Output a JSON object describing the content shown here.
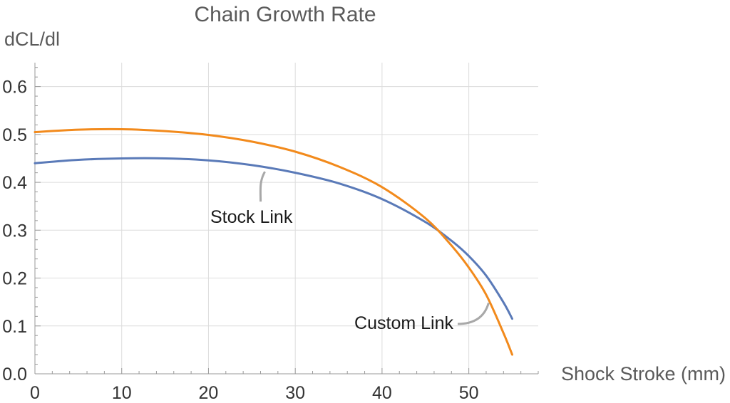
{
  "chart_data": {
    "type": "line",
    "title": "Chain Growth Rate",
    "xlabel": "Shock Stroke (mm)",
    "ylabel": "dCL/dl",
    "xlim": [
      0,
      58
    ],
    "ylim": [
      0,
      0.65
    ],
    "xticks": [
      0,
      10,
      20,
      30,
      40,
      50
    ],
    "xtick_labels": [
      "0",
      "10",
      "20",
      "30",
      "40",
      "50"
    ],
    "yticks": [
      0.0,
      0.1,
      0.2,
      0.3,
      0.4,
      0.5,
      0.6
    ],
    "ytick_labels": [
      "0.0",
      "0.1",
      "0.2",
      "0.3",
      "0.4",
      "0.5",
      "0.6"
    ],
    "grid": true,
    "series": [
      {
        "name": "Stock Link",
        "color": "#5a7ab8",
        "x": [
          0,
          5,
          10,
          15,
          20,
          25,
          30,
          35,
          40,
          45,
          48,
          50,
          52,
          54,
          55
        ],
        "y": [
          0.44,
          0.447,
          0.45,
          0.45,
          0.446,
          0.436,
          0.42,
          0.398,
          0.365,
          0.317,
          0.278,
          0.246,
          0.205,
          0.149,
          0.115
        ]
      },
      {
        "name": "Custom Link",
        "color": "#f28a1c",
        "x": [
          0,
          5,
          10,
          15,
          20,
          25,
          30,
          35,
          40,
          45,
          48,
          50,
          52,
          54,
          55
        ],
        "y": [
          0.505,
          0.51,
          0.511,
          0.507,
          0.499,
          0.485,
          0.464,
          0.433,
          0.39,
          0.325,
          0.268,
          0.222,
          0.165,
          0.085,
          0.04
        ]
      }
    ],
    "annotations": [
      {
        "text": "Stock Link",
        "series": "Stock Link"
      },
      {
        "text": "Custom Link",
        "series": "Custom Link"
      }
    ]
  }
}
